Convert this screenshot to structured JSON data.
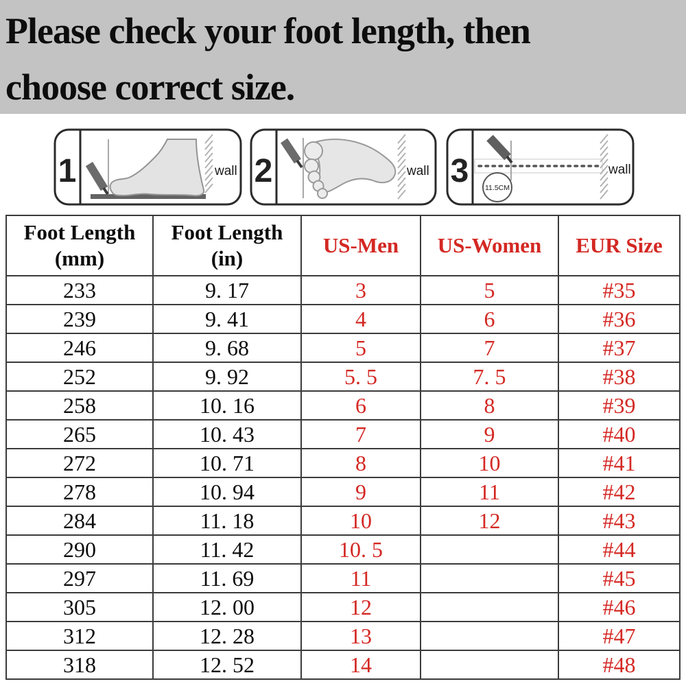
{
  "banner": {
    "line1": "Please check your foot length, then",
    "line2": "choose correct size.",
    "background": "#c3c3c3"
  },
  "instructions": {
    "panels": [
      {
        "number": "1",
        "wall_label": "wall"
      },
      {
        "number": "2",
        "wall_label": "wall"
      },
      {
        "number": "3",
        "wall_label": "wall",
        "circle_label": "11.5CM"
      }
    ]
  },
  "table": {
    "accent_red": "#d42823",
    "border_color": "#3b3b3b",
    "columns": [
      {
        "line1": "Foot Length",
        "line2": "(mm)"
      },
      {
        "line1": "Foot Length",
        "line2": "(in)"
      },
      {
        "label": "US-Men"
      },
      {
        "label": "US-Women"
      },
      {
        "label": "EUR Size"
      }
    ],
    "rows": [
      {
        "mm": "233",
        "inch": "9. 17",
        "us_men": "3",
        "us_women": "5",
        "eur": "#35"
      },
      {
        "mm": "239",
        "inch": "9. 41",
        "us_men": "4",
        "us_women": "6",
        "eur": "#36"
      },
      {
        "mm": "246",
        "inch": "9. 68",
        "us_men": "5",
        "us_women": "7",
        "eur": "#37"
      },
      {
        "mm": "252",
        "inch": "9. 92",
        "us_men": "5. 5",
        "us_women": "7. 5",
        "eur": "#38"
      },
      {
        "mm": "258",
        "inch": "10. 16",
        "us_men": "6",
        "us_women": "8",
        "eur": "#39"
      },
      {
        "mm": "265",
        "inch": "10. 43",
        "us_men": "7",
        "us_women": "9",
        "eur": "#40"
      },
      {
        "mm": "272",
        "inch": "10. 71",
        "us_men": "8",
        "us_women": "10",
        "eur": "#41"
      },
      {
        "mm": "278",
        "inch": "10. 94",
        "us_men": "9",
        "us_women": "11",
        "eur": "#42"
      },
      {
        "mm": "284",
        "inch": "11. 18",
        "us_men": "10",
        "us_women": "12",
        "eur": "#43"
      },
      {
        "mm": "290",
        "inch": "11. 42",
        "us_men": "10. 5",
        "us_women": "",
        "eur": "#44"
      },
      {
        "mm": "297",
        "inch": "11. 69",
        "us_men": "11",
        "us_women": "",
        "eur": "#45"
      },
      {
        "mm": "305",
        "inch": "12. 00",
        "us_men": "12",
        "us_women": "",
        "eur": "#46"
      },
      {
        "mm": "312",
        "inch": "12. 28",
        "us_men": "13",
        "us_women": "",
        "eur": "#47"
      },
      {
        "mm": "318",
        "inch": "12. 52",
        "us_men": "14",
        "us_women": "",
        "eur": "#48"
      }
    ]
  }
}
